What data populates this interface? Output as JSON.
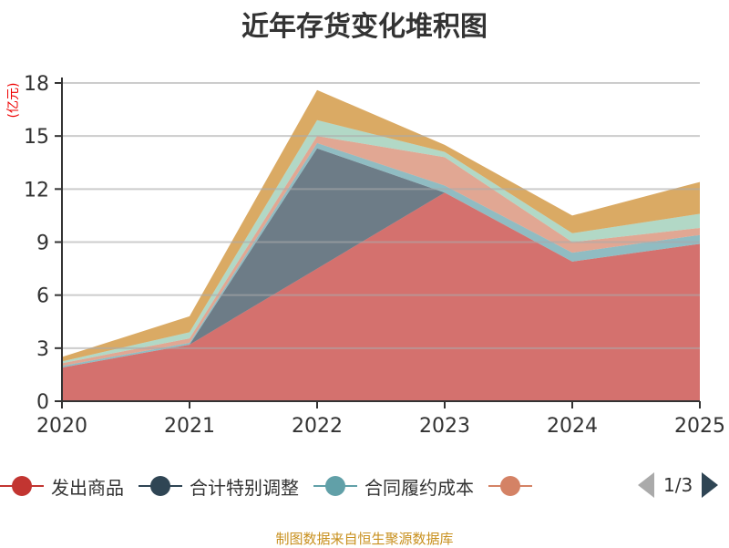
{
  "chart_data": {
    "type": "area",
    "stacked": true,
    "title": "近年存货变化堆积图",
    "ylabel": "(亿元)",
    "xlabel": "",
    "x": [
      "2020",
      "2021",
      "2022",
      "2023",
      "2024",
      "2025"
    ],
    "ylim": [
      0,
      18
    ],
    "yticks": [
      "0",
      "3",
      "6",
      "9",
      "12",
      "15",
      "18"
    ],
    "grid": true,
    "legend_position": "bottom",
    "series": [
      {
        "name": "发出商品",
        "color": "#c23531",
        "values": [
          1.9,
          3.2,
          7.5,
          11.8,
          7.9,
          8.9
        ]
      },
      {
        "name": "合计特别调整",
        "color": "#2f4554",
        "values": [
          0,
          0,
          6.8,
          0,
          0,
          0
        ]
      },
      {
        "name": "合同履约成本",
        "color": "#61a0a8",
        "values": [
          0.1,
          0.1,
          0.3,
          0.4,
          0.5,
          0.5
        ]
      },
      {
        "name": "",
        "color": "#d48265",
        "values": [
          0.15,
          0.25,
          0.4,
          1.6,
          0.6,
          0.4
        ]
      },
      {
        "name": "",
        "color": "#91c7ae",
        "values": [
          0.1,
          0.35,
          0.9,
          0.3,
          0.5,
          0.8
        ]
      },
      {
        "name": "",
        "color": "#ca8622",
        "values": [
          0.25,
          0.9,
          1.7,
          0.4,
          1.0,
          1.8
        ]
      }
    ]
  },
  "legend": {
    "page": "1/3"
  },
  "source": "制图数据来自恒生聚源数据库"
}
